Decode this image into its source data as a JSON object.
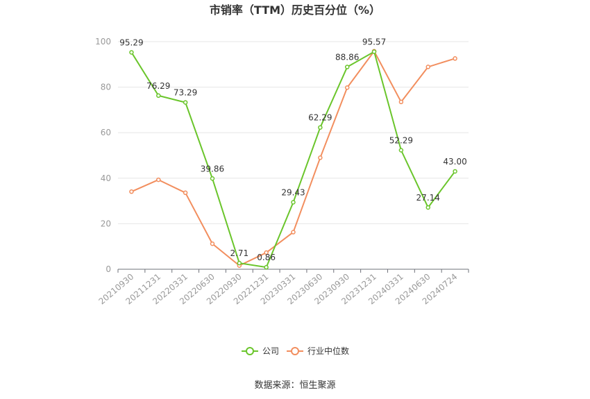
{
  "chart_data": {
    "type": "line",
    "title": "市销率（TTM）历史百分位（%）",
    "categories": [
      "20210930",
      "20211231",
      "20220331",
      "20220630",
      "20220930",
      "20221231",
      "20230331",
      "20230630",
      "20230930",
      "20231231",
      "20240331",
      "20240630",
      "20240724"
    ],
    "series": [
      {
        "name": "公司",
        "color": "#6ac52b",
        "values": [
          95.29,
          76.29,
          73.29,
          39.86,
          2.71,
          0.86,
          29.43,
          62.29,
          88.86,
          95.57,
          52.29,
          27.14,
          43.0
        ],
        "labels": [
          "95.29",
          "76.29",
          "73.29",
          "39.86",
          "2.71",
          "0.86",
          "29.43",
          "62.29",
          "88.86",
          "95.57",
          "52.29",
          "27.14",
          "43.00"
        ]
      },
      {
        "name": "行业中位数",
        "color": "#f28e5e",
        "values": [
          34.1,
          39.3,
          33.6,
          11.2,
          1.6,
          7.3,
          16.3,
          49.0,
          79.8,
          95.8,
          73.5,
          88.9,
          92.6
        ]
      }
    ],
    "yticks": [
      "0",
      "20",
      "40",
      "60",
      "80",
      "100"
    ],
    "ylim": [
      0,
      100
    ],
    "grid": true,
    "legend_position": "bottom"
  },
  "source_text": "数据来源：恒生聚源"
}
